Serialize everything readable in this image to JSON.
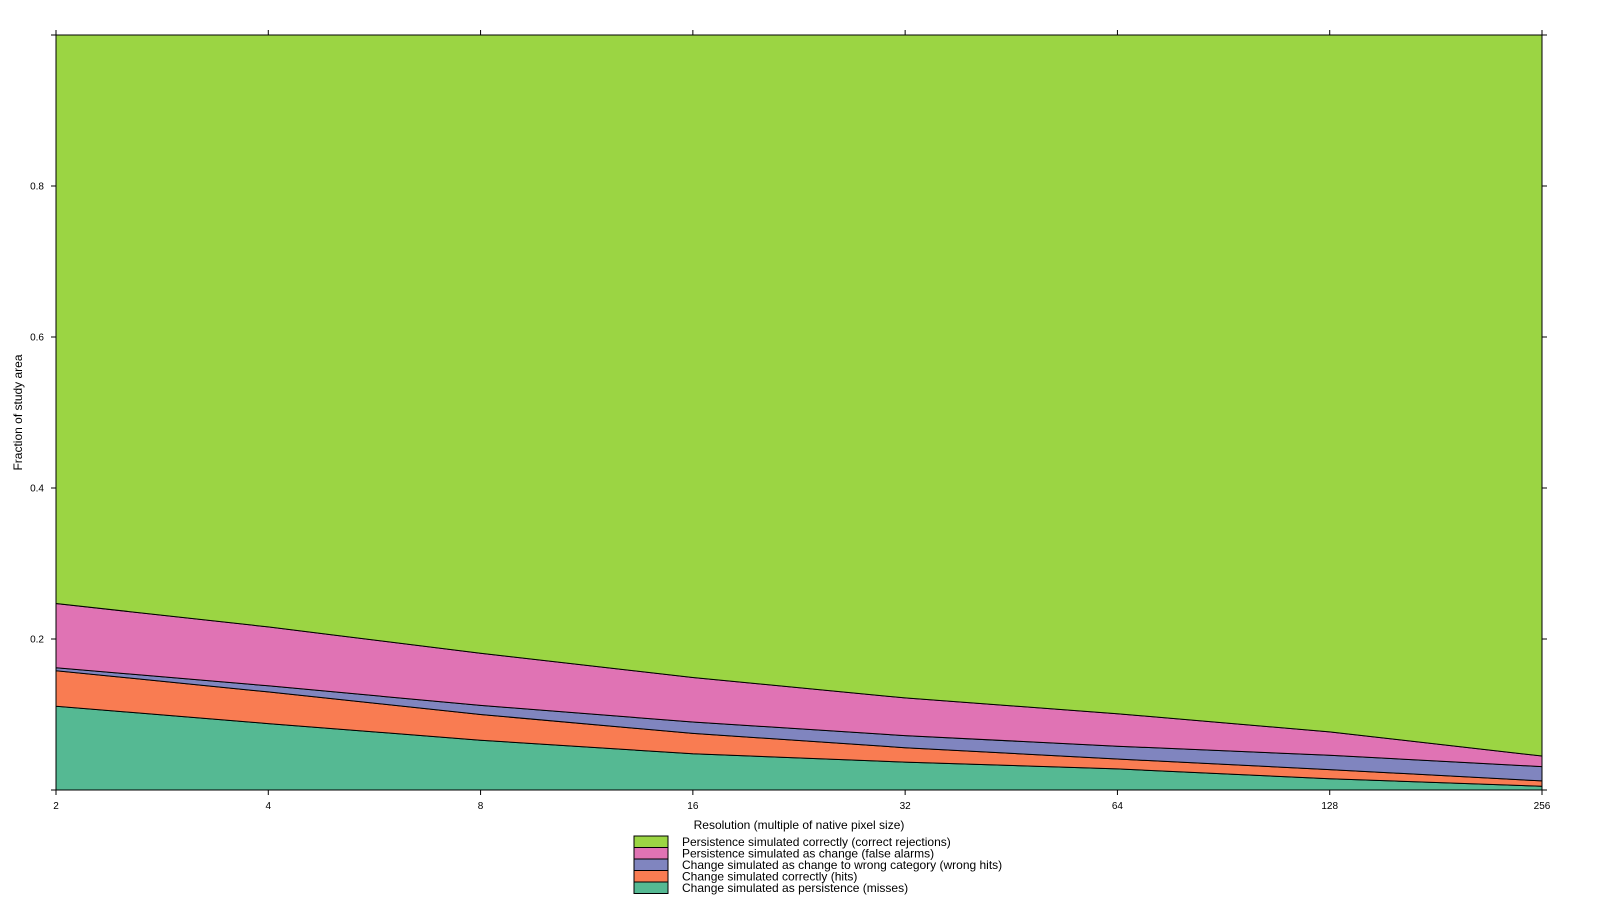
{
  "chart_data": {
    "type": "area",
    "stacked": true,
    "title": "",
    "xlabel": "Resolution (multiple of native pixel size)",
    "ylabel": "Fraction of study area",
    "x_scale": "log2",
    "x": [
      2,
      4,
      8,
      16,
      32,
      64,
      128,
      256
    ],
    "x_tick_labels": [
      "2",
      "4",
      "8",
      "16",
      "32",
      "64",
      "128",
      "256"
    ],
    "xlim": [
      2,
      256
    ],
    "ylim": [
      0,
      1
    ],
    "y_ticks": [
      0.2,
      0.4,
      0.6,
      0.8
    ],
    "y_tick_labels": [
      "0.2",
      "0.4",
      "0.6",
      "0.8"
    ],
    "grid": false,
    "legend_position": "bottom",
    "series": [
      {
        "name": "Change simulated as persistence (misses)",
        "color": "#55b993",
        "values": [
          0.111,
          0.088,
          0.066,
          0.048,
          0.037,
          0.028,
          0.015,
          0.005
        ]
      },
      {
        "name": "Change simulated correctly (hits)",
        "color": "#f97c52",
        "values": [
          0.047,
          0.042,
          0.034,
          0.027,
          0.019,
          0.013,
          0.012,
          0.007
        ]
      },
      {
        "name": "Change simulated as change to wrong category (wrong hits)",
        "color": "#8085bf",
        "values": [
          0.004,
          0.008,
          0.012,
          0.015,
          0.016,
          0.017,
          0.019,
          0.019
        ]
      },
      {
        "name": "Persistence simulated as change (false alarms)",
        "color": "#e073b4",
        "values": [
          0.085,
          0.078,
          0.069,
          0.059,
          0.05,
          0.043,
          0.031,
          0.014
        ]
      },
      {
        "name": "Persistence simulated correctly (correct rejections)",
        "color": "#9bd543",
        "values": [
          0.753,
          0.784,
          0.819,
          0.851,
          0.878,
          0.899,
          0.923,
          0.955
        ]
      }
    ],
    "legend_order": [
      "Persistence simulated correctly (correct rejections)",
      "Persistence simulated as change (false alarms)",
      "Change simulated as change to wrong category (wrong hits)",
      "Change simulated correctly (hits)",
      "Change simulated as persistence (misses)"
    ]
  }
}
